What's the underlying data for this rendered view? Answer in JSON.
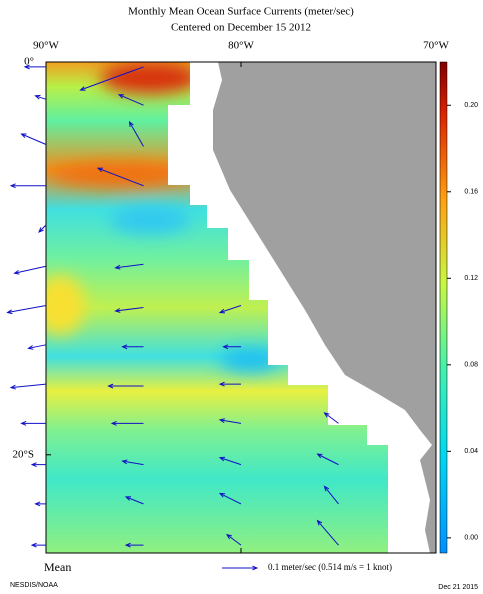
{
  "chart_data": {
    "type": "vector-map",
    "title": "Monthly Mean Ocean Surface Currents (meter/sec)",
    "subtitle": "Centered on December 15 2012",
    "xlim": [
      -90,
      -70
    ],
    "ylim": [
      -25,
      0
    ],
    "xticks": [
      {
        "value": -90,
        "label": "90°W"
      },
      {
        "value": -80,
        "label": "80°W"
      },
      {
        "value": -70,
        "label": "70°W"
      }
    ],
    "yticks": [
      {
        "value": 0,
        "label": "0°"
      },
      {
        "value": -20,
        "label": "20°S"
      }
    ],
    "clim": [
      -0.007,
      0.22
    ],
    "cticks": [
      {
        "value": 0,
        "label": "0.00"
      },
      {
        "value": 0.04,
        "label": "0.04"
      },
      {
        "value": 0.08,
        "label": "0.08"
      },
      {
        "value": 0.12,
        "label": "0.12"
      },
      {
        "value": 0.16,
        "label": "0.16"
      },
      {
        "value": 0.2,
        "label": "0.20"
      }
    ],
    "color": "#1010c8",
    "vectors": [
      [
        -85,
        -0.25,
        -0.18,
        -0.066
      ],
      [
        -85,
        -2.2,
        -0.07,
        0.03
      ],
      [
        -85,
        -4.3,
        -0.04,
        0.07
      ],
      [
        -85,
        -6.3,
        -0.13,
        0.05
      ],
      [
        -90,
        -0.25,
        -0.06,
        0
      ],
      [
        -90,
        -1.9,
        -0.03,
        0.01
      ],
      [
        -90,
        -4.2,
        -0.07,
        0.03
      ],
      [
        -90,
        -6.3,
        -0.1,
        0
      ],
      [
        -90,
        -8.3,
        -0.02,
        -0.02
      ],
      [
        -90,
        -10.4,
        -0.09,
        -0.02
      ],
      [
        -85,
        -10.3,
        -0.08,
        -0.01
      ],
      [
        -90,
        -12.4,
        -0.11,
        -0.02
      ],
      [
        -85,
        -12.5,
        -0.08,
        -0.01
      ],
      [
        -80,
        -12.4,
        -0.06,
        -0.02
      ],
      [
        -90,
        -14.4,
        -0.05,
        -0.01
      ],
      [
        -85,
        -14.5,
        -0.06,
        0
      ],
      [
        -80,
        -14.5,
        -0.05,
        0
      ],
      [
        -90,
        -16.4,
        -0.1,
        -0.01
      ],
      [
        -85,
        -16.5,
        -0.1,
        0
      ],
      [
        -80,
        -16.4,
        -0.06,
        0
      ],
      [
        -90,
        -18.4,
        -0.07,
        0
      ],
      [
        -85,
        -18.4,
        -0.09,
        0
      ],
      [
        -80,
        -18.4,
        -0.06,
        0.01
      ],
      [
        -75,
        -18.4,
        -0.04,
        0.03
      ],
      [
        -90,
        -20.5,
        -0.04,
        0
      ],
      [
        -85,
        -20.5,
        -0.06,
        0.01
      ],
      [
        -80,
        -20.5,
        -0.06,
        0.02
      ],
      [
        -75,
        -20.5,
        -0.06,
        0.03
      ],
      [
        -90,
        -22.5,
        -0.03,
        0
      ],
      [
        -85,
        -22.5,
        -0.05,
        0.02
      ],
      [
        -80,
        -22.5,
        -0.06,
        0.03
      ],
      [
        -75,
        -22.5,
        -0.04,
        0.05
      ],
      [
        -90,
        -24.6,
        -0.04,
        0
      ],
      [
        -85,
        -24.6,
        -0.05,
        0
      ],
      [
        -80,
        -24.6,
        -0.04,
        0.03
      ],
      [
        -75,
        -24.6,
        -0.06,
        0.07
      ]
    ],
    "mean_label": "Mean",
    "reference": {
      "value": 0.1,
      "label": "0.1 meter/sec  (0.514 m/s = 1 knot)"
    },
    "credit": "NESDIS/NOAA",
    "date": "Dec 21 2015"
  }
}
